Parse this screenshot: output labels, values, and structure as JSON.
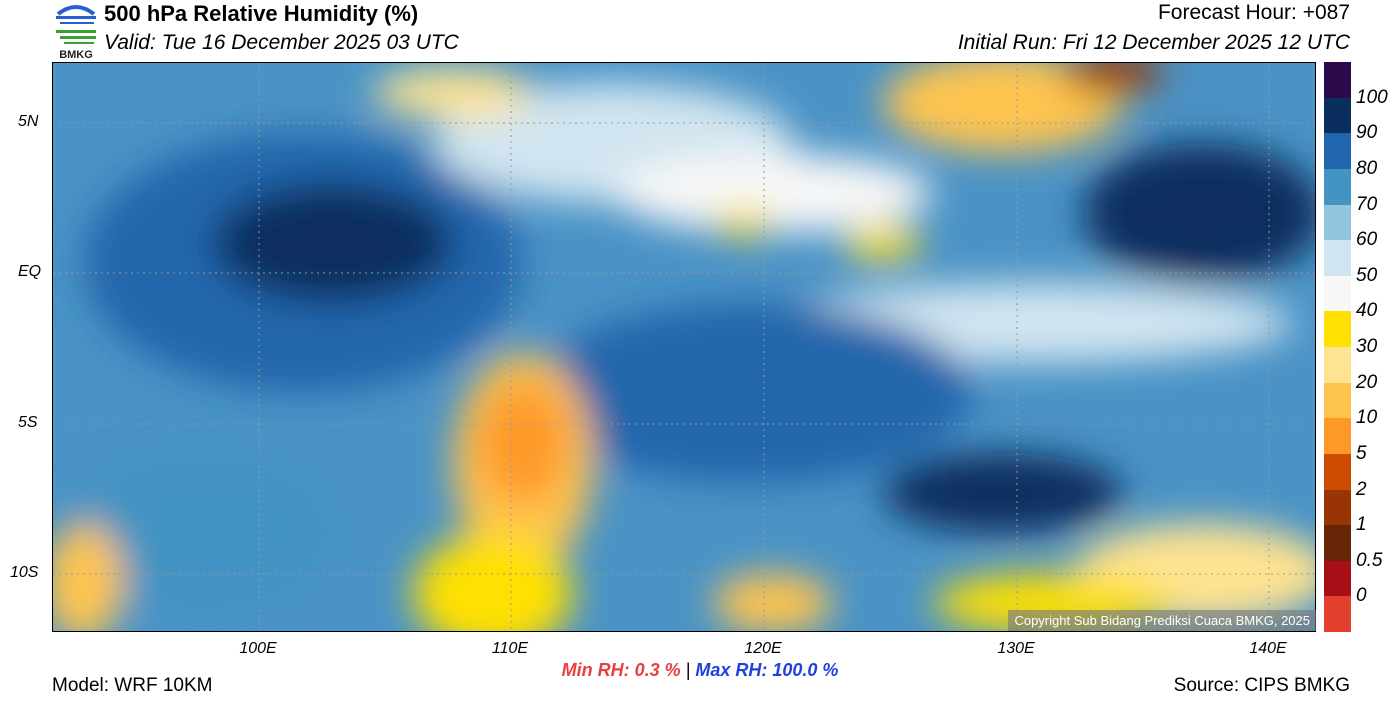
{
  "header": {
    "title": "500 hPa Relative Humidity (%)",
    "valid": "Valid: Tue 16 December 2025 03 UTC",
    "forecast_hour": "Forecast Hour: +087",
    "initial_run": "Initial Run: Fri 12 December 2025 12 UTC",
    "logo_text": "BMKG"
  },
  "colorbar": {
    "labels": [
      "100",
      "90",
      "80",
      "70",
      "60",
      "50",
      "40",
      "30",
      "20",
      "10",
      "5",
      "2",
      "1",
      "0.5",
      "0"
    ],
    "colors": [
      "#2a0a4a",
      "#0a2e5e",
      "#2166ac",
      "#4393c3",
      "#92c5de",
      "#d1e5f0",
      "#f7f7f7",
      "#ffe000",
      "#fee391",
      "#fec44f",
      "#fe9929",
      "#cc4c02",
      "#993404",
      "#662506",
      "#a50f15",
      "#e34030"
    ]
  },
  "axes": {
    "lon": [
      "100E",
      "110E",
      "120E",
      "130E",
      "140E"
    ],
    "lat": [
      "5N",
      "EQ",
      "5S",
      "10S"
    ]
  },
  "stats": {
    "min_label": "Min RH:",
    "min_value": "0.3 %",
    "sep": "|",
    "max_label": "Max RH:",
    "max_value": "100.0 %"
  },
  "footer": {
    "model": "Model: WRF 10KM",
    "source": "Source: CIPS BMKG",
    "copyright": "Copyright Sub Bidang Prediksi Cuaca BMKG, 2025"
  }
}
